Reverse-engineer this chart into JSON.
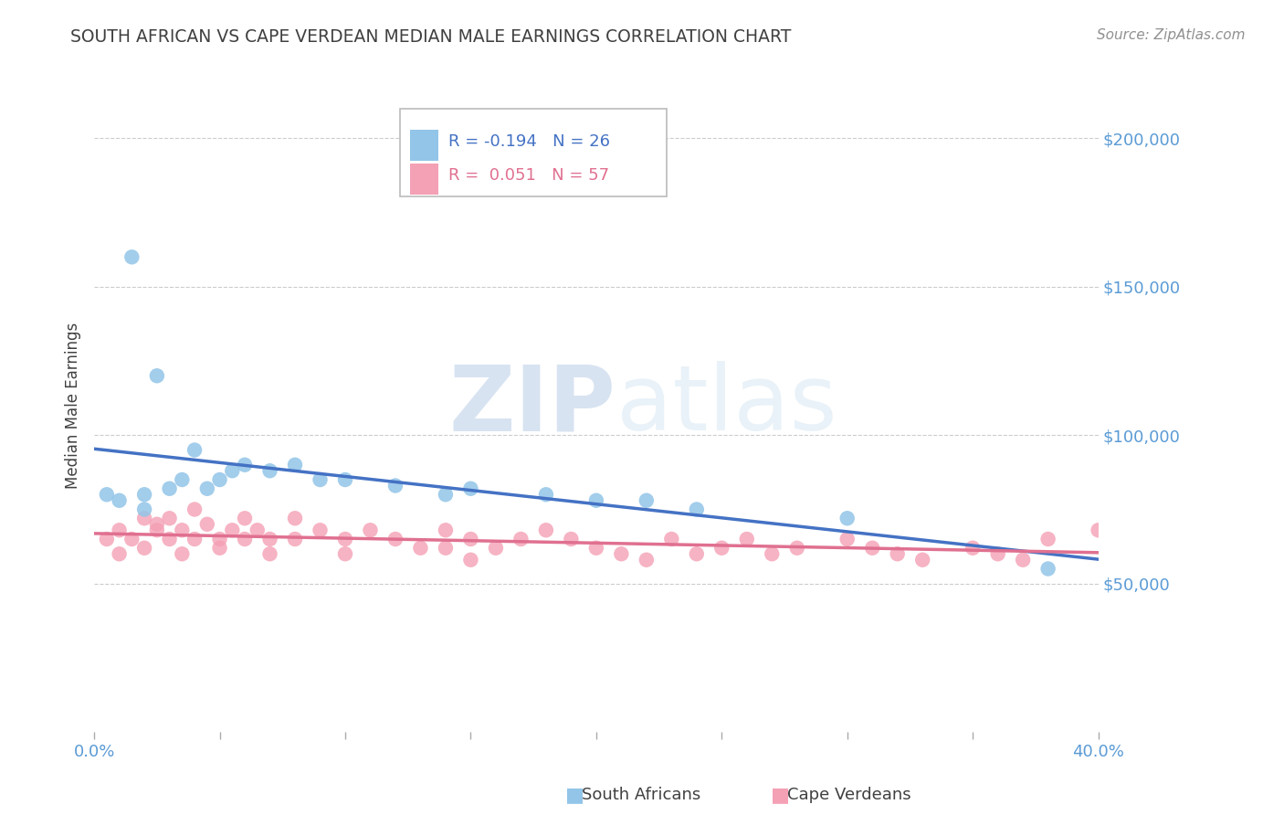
{
  "title": "SOUTH AFRICAN VS CAPE VERDEAN MEDIAN MALE EARNINGS CORRELATION CHART",
  "source": "Source: ZipAtlas.com",
  "ylabel": "Median Male Earnings",
  "r_south_african": -0.194,
  "n_south_african": 26,
  "r_cape_verdean": 0.051,
  "n_cape_verdean": 57,
  "xlim": [
    0.0,
    0.4
  ],
  "ylim": [
    0,
    220000
  ],
  "yticks": [
    50000,
    100000,
    150000,
    200000
  ],
  "xticks": [
    0.0,
    0.05,
    0.1,
    0.15,
    0.2,
    0.25,
    0.3,
    0.35,
    0.4
  ],
  "color_sa": "#92C5E8",
  "color_cv": "#F4A0B5",
  "color_line_sa": "#4472C4",
  "color_line_cv": "#E07090",
  "color_ytick": "#5B9BD5",
  "title_color": "#404040",
  "source_color": "#909090",
  "south_african_x": [
    0.005,
    0.01,
    0.015,
    0.02,
    0.02,
    0.025,
    0.03,
    0.035,
    0.04,
    0.045,
    0.05,
    0.055,
    0.06,
    0.07,
    0.08,
    0.09,
    0.1,
    0.12,
    0.14,
    0.15,
    0.18,
    0.2,
    0.22,
    0.24,
    0.3,
    0.38
  ],
  "south_african_y": [
    80000,
    78000,
    160000,
    80000,
    75000,
    120000,
    82000,
    85000,
    95000,
    82000,
    85000,
    88000,
    90000,
    88000,
    90000,
    85000,
    85000,
    83000,
    80000,
    82000,
    80000,
    78000,
    78000,
    75000,
    72000,
    55000
  ],
  "cape_verdean_x": [
    0.005,
    0.01,
    0.01,
    0.015,
    0.02,
    0.02,
    0.025,
    0.025,
    0.03,
    0.03,
    0.035,
    0.035,
    0.04,
    0.04,
    0.045,
    0.05,
    0.05,
    0.055,
    0.06,
    0.06,
    0.065,
    0.07,
    0.07,
    0.08,
    0.08,
    0.09,
    0.1,
    0.1,
    0.11,
    0.12,
    0.13,
    0.14,
    0.14,
    0.15,
    0.15,
    0.16,
    0.17,
    0.18,
    0.19,
    0.2,
    0.21,
    0.22,
    0.23,
    0.24,
    0.25,
    0.26,
    0.27,
    0.28,
    0.3,
    0.31,
    0.32,
    0.33,
    0.35,
    0.36,
    0.37,
    0.38,
    0.4
  ],
  "cape_verdean_y": [
    65000,
    68000,
    60000,
    65000,
    72000,
    62000,
    70000,
    68000,
    72000,
    65000,
    68000,
    60000,
    75000,
    65000,
    70000,
    65000,
    62000,
    68000,
    72000,
    65000,
    68000,
    65000,
    60000,
    72000,
    65000,
    68000,
    65000,
    60000,
    68000,
    65000,
    62000,
    68000,
    62000,
    58000,
    65000,
    62000,
    65000,
    68000,
    65000,
    62000,
    60000,
    58000,
    65000,
    60000,
    62000,
    65000,
    60000,
    62000,
    65000,
    62000,
    60000,
    58000,
    62000,
    60000,
    58000,
    65000,
    68000
  ],
  "legend_r_sa_text": "R = -0.194   N = 26",
  "legend_r_cv_text": "R =  0.051   N = 57",
  "watermark_zip": "ZIP",
  "watermark_atlas": "atlas"
}
